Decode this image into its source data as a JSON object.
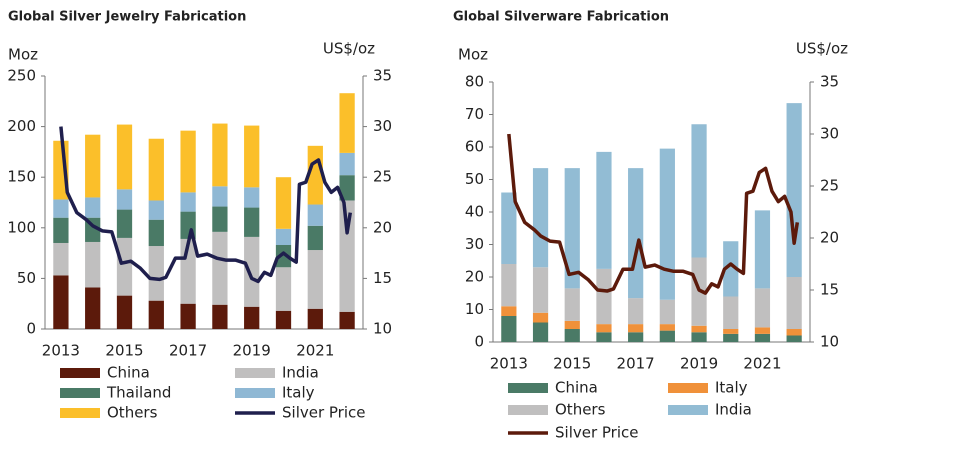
{
  "chart_data": [
    {
      "type": "bar",
      "stacked": true,
      "title": "Global Silver Jewelry Fabrication",
      "y_label": "Moz",
      "y2_label": "US$/oz",
      "categories": [
        "2013",
        null,
        "2015",
        null,
        "2017",
        null,
        "2019",
        null,
        "2021",
        null
      ],
      "xlim": [
        2012.5,
        2022.5
      ],
      "ylim": [
        0,
        250
      ],
      "yticks": [
        0,
        50,
        100,
        150,
        200,
        250
      ],
      "y2lim": [
        10,
        35
      ],
      "y2ticks": [
        10,
        15,
        20,
        25,
        30,
        35
      ],
      "grid": false,
      "series": [
        {
          "name": "China",
          "color": "#5c1a0b",
          "values": [
            53,
            41,
            33,
            28,
            25,
            24,
            22,
            18,
            20,
            17
          ]
        },
        {
          "name": "India",
          "color": "#c0bfbf",
          "values": [
            32,
            45,
            57,
            54,
            64,
            72,
            69,
            43,
            58,
            110
          ]
        },
        {
          "name": "Thailand",
          "color": "#4a7a66",
          "values": [
            25,
            24,
            28,
            26,
            27,
            25,
            29,
            22,
            24,
            25
          ]
        },
        {
          "name": "Italy",
          "color": "#8fb8d4",
          "values": [
            18,
            20,
            20,
            19,
            19,
            20,
            20,
            16,
            21,
            22
          ]
        },
        {
          "name": "Others",
          "color": "#fbbf2a",
          "values": [
            58,
            62,
            64,
            61,
            61,
            62,
            61,
            51,
            58,
            59
          ]
        },
        {
          "name": "Silver Price",
          "color": "#1f1f4d",
          "type": "line",
          "axis": "y2",
          "x": [
            2013.0,
            2013.2,
            2013.5,
            2013.8,
            2014.0,
            2014.3,
            2014.6,
            2014.9,
            2015.2,
            2015.5,
            2015.8,
            2016.1,
            2016.3,
            2016.6,
            2016.9,
            2017.1,
            2017.3,
            2017.6,
            2017.9,
            2018.2,
            2018.5,
            2018.8,
            2019.0,
            2019.2,
            2019.4,
            2019.6,
            2019.8,
            2020.0,
            2020.2,
            2020.4,
            2020.5,
            2020.7,
            2020.9,
            2021.1,
            2021.3,
            2021.5,
            2021.7,
            2021.9,
            2022.0,
            2022.1
          ],
          "values": [
            30,
            23.5,
            21.5,
            20.8,
            20.2,
            19.7,
            19.6,
            16.5,
            16.7,
            16,
            15,
            14.9,
            15.1,
            17,
            17,
            19.8,
            17.2,
            17.4,
            17,
            16.8,
            16.8,
            16.5,
            15,
            14.7,
            15.6,
            15.3,
            17,
            17.5,
            17,
            16.6,
            24.3,
            24.5,
            26.3,
            26.7,
            24.5,
            23.5,
            24,
            22.5,
            19.5,
            21.5
          ]
        }
      ]
    },
    {
      "type": "bar",
      "stacked": true,
      "title": "Global Silverware Fabrication",
      "y_label": "Moz",
      "y2_label": "US$/oz",
      "categories": [
        "2013",
        null,
        "2015",
        null,
        "2017",
        null,
        "2019",
        null,
        "2021",
        null
      ],
      "xlim": [
        2012.5,
        2022.5
      ],
      "ylim": [
        0,
        80
      ],
      "yticks": [
        0,
        10,
        20,
        30,
        40,
        50,
        60,
        70,
        80
      ],
      "y2lim": [
        10,
        35
      ],
      "y2ticks": [
        10,
        15,
        20,
        25,
        30,
        35
      ],
      "grid": false,
      "series": [
        {
          "name": "China",
          "color": "#4a7a66",
          "values": [
            8,
            6,
            4,
            3,
            3,
            3.5,
            3,
            2.5,
            2.5,
            2
          ]
        },
        {
          "name": "Italy",
          "color": "#f0913a",
          "values": [
            3,
            3,
            2.5,
            2.5,
            2.5,
            2,
            2,
            1.5,
            2,
            2
          ]
        },
        {
          "name": "Others",
          "color": "#c0bfbf",
          "values": [
            13,
            14,
            10,
            17,
            8,
            7.5,
            21,
            10,
            12,
            16
          ]
        },
        {
          "name": "India",
          "color": "#92bcd4",
          "values": [
            22,
            30.5,
            37,
            36,
            40,
            46.5,
            41,
            17,
            24,
            53.5
          ]
        },
        {
          "name": "Silver Price",
          "color": "#5c1a0b",
          "type": "line",
          "axis": "y2",
          "x": [
            2013.0,
            2013.2,
            2013.5,
            2013.8,
            2014.0,
            2014.3,
            2014.6,
            2014.9,
            2015.2,
            2015.5,
            2015.8,
            2016.1,
            2016.3,
            2016.6,
            2016.9,
            2017.1,
            2017.3,
            2017.6,
            2017.9,
            2018.2,
            2018.5,
            2018.8,
            2019.0,
            2019.2,
            2019.4,
            2019.6,
            2019.8,
            2020.0,
            2020.2,
            2020.4,
            2020.5,
            2020.7,
            2020.9,
            2021.1,
            2021.3,
            2021.5,
            2021.7,
            2021.9,
            2022.0,
            2022.1
          ],
          "values": [
            30,
            23.5,
            21.5,
            20.8,
            20.2,
            19.7,
            19.6,
            16.5,
            16.7,
            16,
            15,
            14.9,
            15.1,
            17,
            17,
            19.8,
            17.2,
            17.4,
            17,
            16.8,
            16.8,
            16.5,
            15,
            14.7,
            15.6,
            15.3,
            17,
            17.5,
            17,
            16.6,
            24.3,
            24.5,
            26.3,
            26.7,
            24.5,
            23.5,
            24,
            22.5,
            19.5,
            21.5
          ]
        }
      ]
    }
  ]
}
